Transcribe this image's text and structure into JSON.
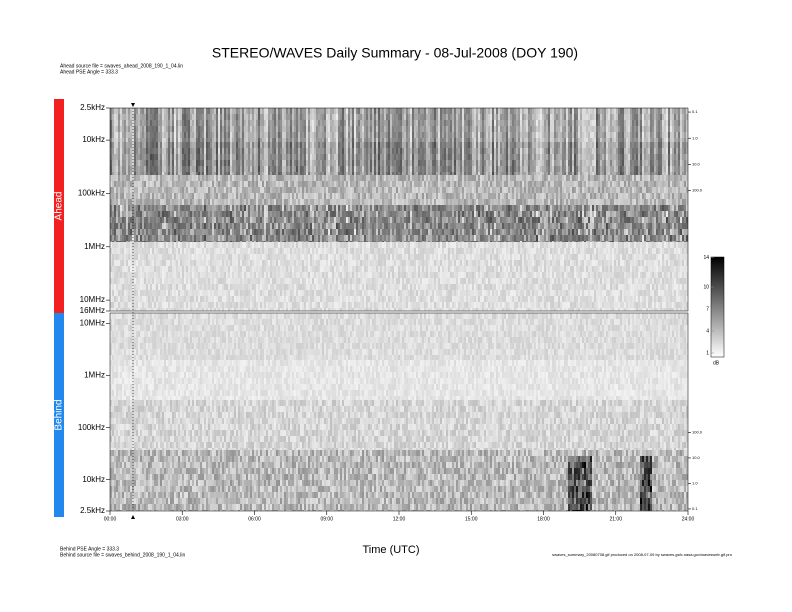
{
  "chart_data": {
    "type": "spectrogram",
    "title": "STEREO/WAVES Daily Summary - 08-Jul-2008 (DOY 190)",
    "header_notes": [
      "Ahead source file = swaves_ahead_2008_190_1_04.lin",
      "Ahead PSE Angle = 333.3"
    ],
    "footer_notes": [
      "Behind PSE Angle = 333.3",
      "Behind source file = swaves_behind_2008_190_1_04.lin"
    ],
    "footer_right": "swaves_summary_20080708.gif produced on 2008-07-09 by swaves.gsfc.nasa.gov/wavesweb.gif.pro",
    "xlabel": "Time (UTC)",
    "xlim": [
      0,
      24
    ],
    "xticks": [
      {
        "value": 0,
        "label": "00:00"
      },
      {
        "value": 3,
        "label": "03:00"
      },
      {
        "value": 6,
        "label": "06:00"
      },
      {
        "value": 9,
        "label": "09:00"
      },
      {
        "value": 12,
        "label": "12:00"
      },
      {
        "value": 15,
        "label": "15:00"
      },
      {
        "value": 18,
        "label": "18:00"
      },
      {
        "value": 21,
        "label": "21:00"
      },
      {
        "value": 24,
        "label": "24:00"
      }
    ],
    "panels": [
      {
        "name": "Ahead",
        "color": "#f22020",
        "log_y": true,
        "ylim": [
          16000000,
          2500
        ],
        "yticks": [
          {
            "value": 2500,
            "label": "2.5kHz"
          },
          {
            "value": 10000,
            "label": "10kHz"
          },
          {
            "value": 100000,
            "label": "100kHz"
          },
          {
            "value": 1000000,
            "label": "1MHz"
          },
          {
            "value": 10000000,
            "label": "10MHz"
          },
          {
            "value": 16000000,
            "label": "16MHz"
          }
        ],
        "y2lim": [
          4000000,
          0.07
        ],
        "y2ticks": [
          0.1,
          {
            "value": 1,
            "label": "1.0"
          },
          {
            "value": 10,
            "label": "10.0"
          },
          {
            "value": 100,
            "label": "100.0"
          }
        ]
      },
      {
        "name": "Behind",
        "color": "#2288ee",
        "log_y": true,
        "ylim": [
          2500,
          16000000
        ],
        "yticks": [
          {
            "value": 10000000,
            "label": "10MHz"
          },
          {
            "value": 1000000,
            "label": "1MHz"
          },
          {
            "value": 100000,
            "label": "100kHz"
          },
          {
            "value": 10000,
            "label": "10kHz"
          },
          {
            "value": 2500,
            "label": "2.5kHz"
          }
        ],
        "y2lim": [
          0.083,
          4800000
        ],
        "y2ticks": [
          {
            "value": 100,
            "label": "100.0"
          },
          {
            "value": 10,
            "label": "10.0"
          },
          {
            "value": 1,
            "label": "1.0"
          },
          0.1
        ]
      }
    ],
    "colorbar": {
      "label": "dB",
      "lim": [
        0.45,
        14.1
      ],
      "ticks": [
        14,
        10,
        7,
        4,
        1
      ]
    }
  }
}
